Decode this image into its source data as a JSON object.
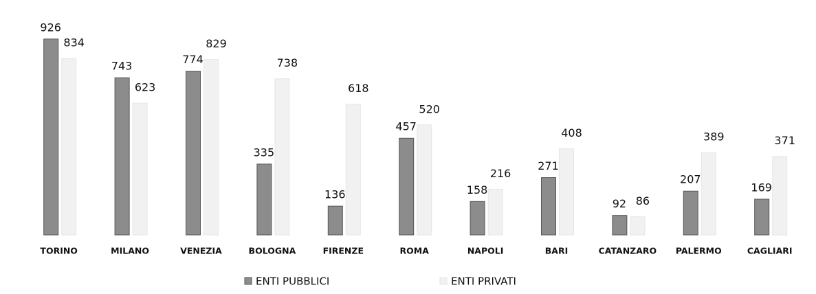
{
  "chart_data": {
    "type": "bar",
    "categories": [
      "TORINO",
      "MILANO",
      "VENEZIA",
      "BOLOGNA",
      "FIRENZE",
      "ROMA",
      "NAPOLI",
      "BARI",
      "CATANZARO",
      "PALERMO",
      "CAGLIARI"
    ],
    "series": [
      {
        "name": "ENTI PUBBLICI",
        "color": "#8c8c8c",
        "values": [
          926,
          743,
          774,
          335,
          136,
          457,
          158,
          271,
          92,
          207,
          169
        ]
      },
      {
        "name": "ENTI PRIVATI",
        "color": "#f1f1f1",
        "values": [
          834,
          623,
          829,
          738,
          618,
          520,
          216,
          408,
          86,
          389,
          371
        ]
      }
    ],
    "legend": "bottom"
  }
}
